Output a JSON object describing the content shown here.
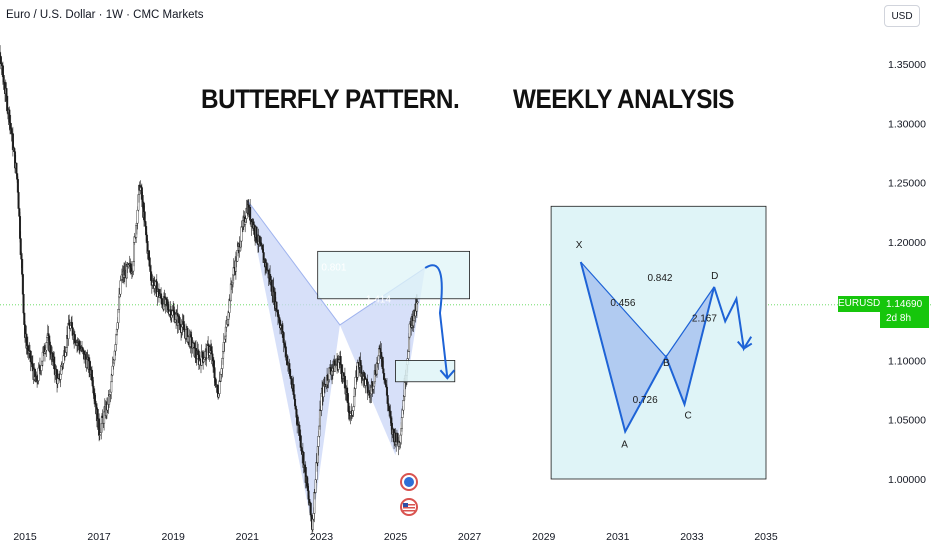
{
  "header": {
    "title": "Euro / U.S. Dollar · 1W · CMC Markets",
    "currency": "USD"
  },
  "headline": {
    "left": "BUTTERFLY PATTERN.",
    "right": "WEEKLY ANALYSIS"
  },
  "price": {
    "symbol": "EURUSD",
    "value": "1.14690",
    "countdown": "2d 8h"
  },
  "colors": {
    "candle": "#1c1c1c",
    "pattern_fill": "#c9d6f7",
    "zone_fill": "#dff4f7",
    "arrow": "#1e63d6",
    "price_line": "#16c60c"
  },
  "chart_data": {
    "type": "candlestick",
    "title": "Euro / U.S. Dollar · 1W · CMC Markets",
    "x": {
      "ticks": [
        "2015",
        "2017",
        "2019",
        "2021",
        "2023",
        "2025",
        "2027",
        "2029",
        "2031",
        "2033",
        "2035"
      ]
    },
    "y": {
      "ticks": [
        "1.35000",
        "1.30000",
        "1.25000",
        "1.20000",
        "1.15000",
        "1.10000",
        "1.05000",
        "1.00000"
      ],
      "range": [
        0.96,
        1.39
      ]
    },
    "current_price": 1.1469,
    "price_path": [
      [
        2014.0,
        1.39
      ],
      [
        2014.3,
        1.36
      ],
      [
        2014.6,
        1.3
      ],
      [
        2014.8,
        1.25
      ],
      [
        2015.0,
        1.12
      ],
      [
        2015.3,
        1.08
      ],
      [
        2015.6,
        1.12
      ],
      [
        2015.9,
        1.08
      ],
      [
        2016.2,
        1.13
      ],
      [
        2016.5,
        1.11
      ],
      [
        2016.8,
        1.09
      ],
      [
        2017.0,
        1.04
      ],
      [
        2017.3,
        1.07
      ],
      [
        2017.6,
        1.17
      ],
      [
        2017.9,
        1.18
      ],
      [
        2018.1,
        1.25
      ],
      [
        2018.4,
        1.17
      ],
      [
        2018.7,
        1.15
      ],
      [
        2019.0,
        1.14
      ],
      [
        2019.4,
        1.12
      ],
      [
        2019.7,
        1.1
      ],
      [
        2020.0,
        1.11
      ],
      [
        2020.2,
        1.07
      ],
      [
        2020.6,
        1.17
      ],
      [
        2021.0,
        1.23
      ],
      [
        2021.3,
        1.2
      ],
      [
        2021.6,
        1.17
      ],
      [
        2021.9,
        1.13
      ],
      [
        2022.2,
        1.08
      ],
      [
        2022.5,
        1.02
      ],
      [
        2022.75,
        0.96
      ],
      [
        2023.0,
        1.07
      ],
      [
        2023.2,
        1.09
      ],
      [
        2023.5,
        1.1
      ],
      [
        2023.8,
        1.05
      ],
      [
        2024.0,
        1.1
      ],
      [
        2024.3,
        1.07
      ],
      [
        2024.6,
        1.11
      ],
      [
        2024.9,
        1.04
      ],
      [
        2025.1,
        1.03
      ],
      [
        2025.4,
        1.13
      ],
      [
        2025.6,
        1.1469
      ]
    ],
    "pattern_left": [
      [
        2021.0,
        1.235
      ],
      [
        2022.75,
        0.96
      ],
      [
        2023.5,
        1.13
      ],
      [
        2025.0,
        1.02
      ],
      [
        2025.8,
        1.178
      ]
    ],
    "pattern_labels": [
      "0.801",
      "1.414"
    ],
    "prz_box": {
      "x0": 2022.9,
      "x1": 2027.0,
      "y0": 1.152,
      "y1": 1.192
    },
    "target_box": {
      "x0": 2025.0,
      "x1": 2026.6,
      "y0": 1.082,
      "y1": 1.1
    },
    "forecast_arrow": [
      [
        2025.8,
        1.178
      ],
      [
        2026.2,
        1.14
      ],
      [
        2026.4,
        1.085
      ]
    ],
    "example": {
      "points": [
        {
          "label": "X",
          "x": 2030.0,
          "y": 1.183
        },
        {
          "label": "A",
          "x": 2031.2,
          "y": 1.04
        },
        {
          "label": "B",
          "x": 2032.3,
          "y": 1.103
        },
        {
          "label": "C",
          "x": 2032.8,
          "y": 1.063
        },
        {
          "label": "D",
          "x": 2033.6,
          "y": 1.162
        }
      ],
      "ratios": [
        "0.842",
        "0.456",
        "2.167",
        "0.726"
      ],
      "box": {
        "x0": 2029.2,
        "x1": 2035.0,
        "y0": 1.0,
        "y1": 1.23
      },
      "tail": [
        [
          2033.6,
          1.162
        ],
        [
          2033.9,
          1.133
        ],
        [
          2034.2,
          1.152
        ],
        [
          2034.4,
          1.11
        ],
        [
          2034.6,
          1.12
        ]
      ]
    }
  }
}
